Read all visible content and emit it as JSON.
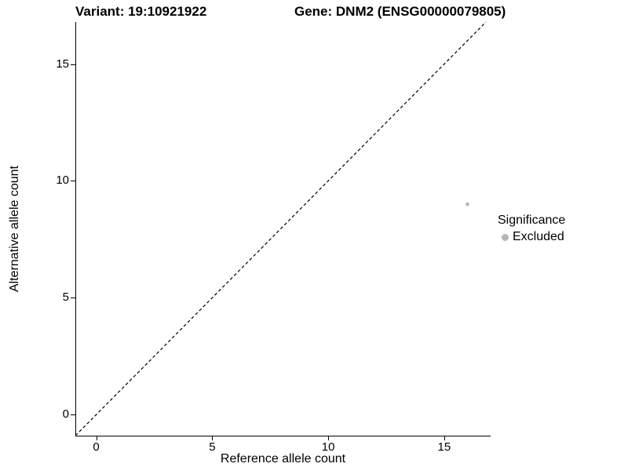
{
  "chart_data": {
    "type": "scatter",
    "title_left": "Variant: 19:10921922",
    "title_right": "Gene: DNM2 (ENSG00000079805)",
    "xlabel": "Reference allele count",
    "ylabel": "Alternative allele count",
    "xlim": [
      -0.9,
      17
    ],
    "ylim": [
      -0.9,
      16.8
    ],
    "xticks": [
      0,
      5,
      10,
      15
    ],
    "yticks": [
      0,
      5,
      10,
      15
    ],
    "grid": false,
    "axis_color": "#000000",
    "point_color": "#b5b5b5",
    "identity_line": {
      "shown": true,
      "style": "dashed",
      "color": "#000000",
      "equation": "y = x"
    },
    "points": [
      {
        "x": 16,
        "y": 9,
        "series": "Excluded"
      }
    ],
    "legend": {
      "position": "right",
      "title": "Significance",
      "items": [
        {
          "label": "Excluded",
          "color": "#b5b5b5"
        }
      ]
    }
  }
}
